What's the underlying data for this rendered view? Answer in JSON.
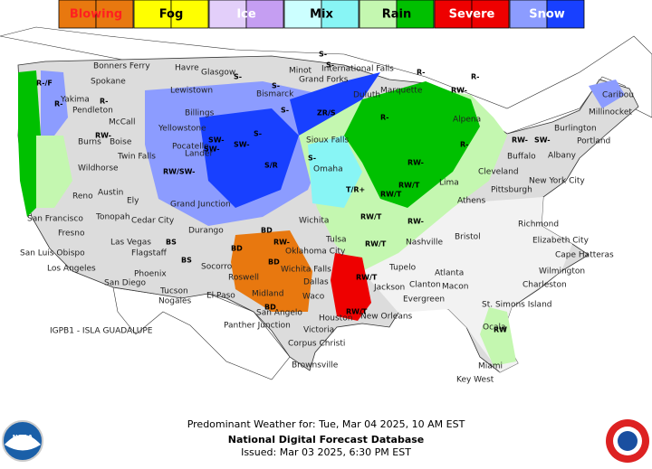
{
  "legend": [
    {
      "label": "Blowing",
      "color": "#e8780f",
      "color2": "#e8780f",
      "text_color": "#ff2020"
    },
    {
      "label": "Fog",
      "color": "#ffff00",
      "color2": "#ffff00",
      "text_color": "#000000"
    },
    {
      "label": "Ice",
      "color": "#e3cffa",
      "color2": "#c59ef2",
      "text_color": "#ffffff"
    },
    {
      "label": "Mix",
      "color": "#ccffff",
      "color2": "#88f5f5",
      "text_color": "#000000"
    },
    {
      "label": "Rain",
      "color": "#c4f7b0",
      "color2": "#00c000",
      "text_color": "#000000"
    },
    {
      "label": "Severe",
      "color": "#ee0000",
      "color2": "#ee0000",
      "text_color": "#ffffff"
    },
    {
      "label": "Snow",
      "color": "#8c9cff",
      "color2": "#1840ff",
      "text_color": "#ffffff"
    }
  ],
  "cities": [
    "Bonners Ferry",
    "Havre",
    "Glasgow",
    "Minot",
    "International Falls",
    "Spokane",
    "Yakima",
    "Pendleton",
    "Lewistown",
    "Bismarck",
    "Grand Forks",
    "Duluth",
    "Marquette",
    "Alpena",
    "Caribou",
    "Millinocket",
    "Burlington",
    "Portland",
    "Buffalo",
    "Albany",
    "New York City",
    "Burns",
    "Boise",
    "McCall",
    "Yellowstone",
    "Billings",
    "Twin Falls",
    "Pocatello",
    "Lander",
    "Sioux Falls",
    "Omaha",
    "Wildhorse",
    "Reno",
    "Austin",
    "Ely",
    "Grand Junction",
    "Cedar City",
    "Tonopah",
    "Durango",
    "San Francisco",
    "Fresno",
    "San Luis Obispo",
    "Los Angeles",
    "San Diego",
    "Las Vegas",
    "Flagstaff",
    "Phoenix",
    "Tucson",
    "Nogales",
    "El Paso",
    "Socorro",
    "Roswell",
    "Midland",
    "San Angelo",
    "Wichita",
    "Oklahoma City",
    "Tulsa",
    "Wichita Falls",
    "Dallas",
    "Waco",
    "Houston",
    "Victoria",
    "Corpus Christi",
    "Brownsville",
    "Nashville",
    "Tupelo",
    "Jackson",
    "New Orleans",
    "Atlanta",
    "Clanton",
    "Macon",
    "Evergreen",
    "Bristol",
    "Cleveland",
    "Lima",
    "Pittsburgh",
    "Athens",
    "Richmond",
    "Elizabeth City",
    "Cape Hatteras",
    "Wilmington",
    "Charleston",
    "St. Simons Island",
    "Ocala",
    "Miami",
    "Key West",
    "Panther Junction"
  ],
  "codes": [
    "S-",
    "S-",
    "S-",
    "S-",
    "S-",
    "R-",
    "R-/F",
    "RW-",
    "R-",
    "SW-",
    "SW-",
    "S-",
    "S/R",
    "RW/SW-",
    "ZR/S",
    "RW-",
    "R-",
    "SW-",
    "RW-",
    "R-",
    "R-",
    "RW-",
    "RW/T",
    "RW/T",
    "T/R+",
    "RW/T",
    "RW-",
    "RW/T",
    "RW/T",
    "RW/T",
    "BD",
    "BD",
    "BD",
    "BD",
    "BS",
    "BS",
    "RW-",
    "RW",
    "R-",
    "S-",
    "SW-"
  ],
  "annotation": "IGPB1 - ISLA GUADALUPE",
  "footer": {
    "line1": "Predominant Weather for: Tue, Mar 04 2025, 10 AM EST",
    "line2": "National Digital Forecast Database",
    "line3": "Issued: Mar 03 2025, 6:30 PM EST"
  },
  "logo_text": "NOAA"
}
